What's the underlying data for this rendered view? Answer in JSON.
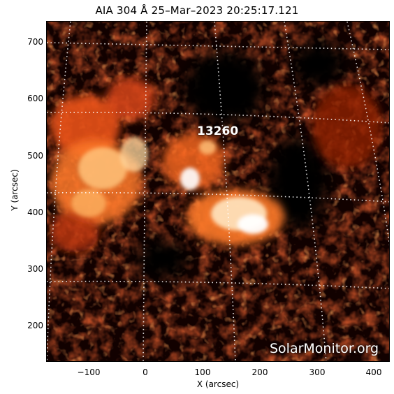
{
  "title": "AIA 304 Å 25–Mar–2023 20:25:17.121",
  "region": {
    "number": "13260"
  },
  "watermark": "SolarMonitor.org",
  "axes": {
    "xlabel": "X (arcsec)",
    "ylabel": "Y (arcsec)",
    "xticks": [
      "−100",
      "0",
      "100",
      "200",
      "300",
      "400"
    ],
    "yticks": [
      "700",
      "600",
      "500",
      "400",
      "300",
      "200"
    ],
    "xlim": [
      -175,
      425
    ],
    "ylim": [
      135,
      735
    ]
  },
  "colors": {
    "background": "#000000",
    "bright": "#ffffff",
    "mid": "#e8521a",
    "dark": "#5a0e04",
    "grid": "#ffffff"
  },
  "image": {
    "colormap": "sdoaia304",
    "grid": "dotted heliographic lat/lon"
  }
}
